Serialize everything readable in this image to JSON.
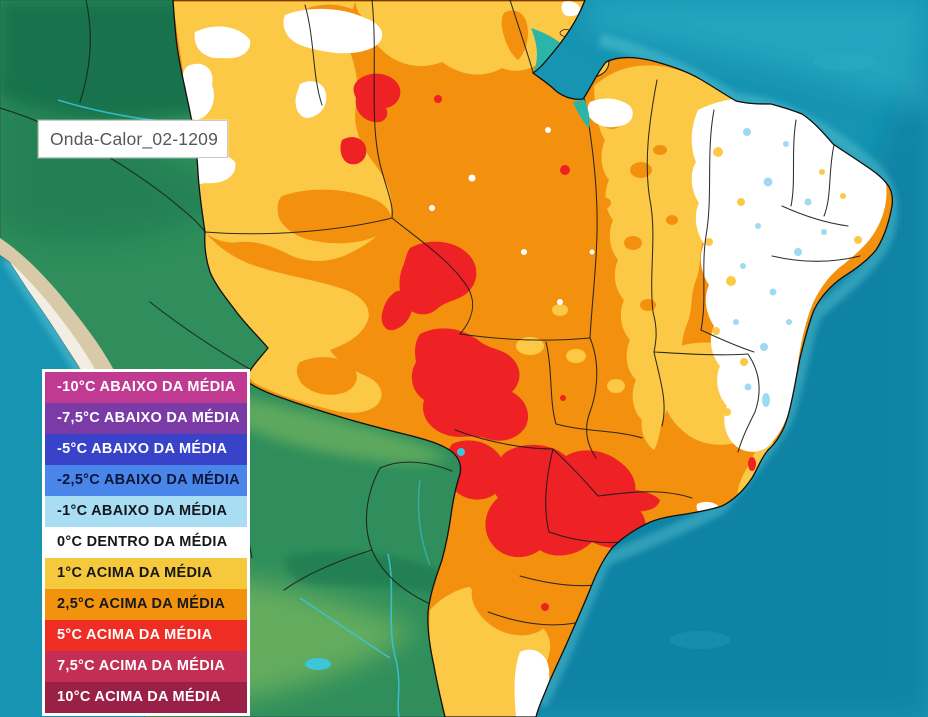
{
  "map_label": {
    "text": "Onda-Calor_02-1209"
  },
  "legend": {
    "items": [
      {
        "label": "-10°C ABAIXO DA MÉDIA",
        "bg": "#C03A92",
        "text_color": "#FFFFFF"
      },
      {
        "label": "-7,5°C ABAIXO DA MÉDIA",
        "bg": "#7B3BA7",
        "text_color": "#FFFFFF"
      },
      {
        "label": "-5°C ABAIXO DA MÉDIA",
        "bg": "#3943C9",
        "text_color": "#FFFFFF"
      },
      {
        "label": "-2,5°C ABAIXO DA MÉDIA",
        "bg": "#4A86EA",
        "text_color": "#0E1638"
      },
      {
        "label": "-1°C ABAIXO DA MÉDIA",
        "bg": "#A9DDF3",
        "text_color": "#14181C"
      },
      {
        "label": "0°C DENTRO DA MÉDIA",
        "bg": "#FFFFFF",
        "text_color": "#14181C"
      },
      {
        "label": "1°C ACIMA DA MÉDIA",
        "bg": "#F6C83B",
        "text_color": "#14181C"
      },
      {
        "label": "2,5°C ACIMA DA MÉDIA",
        "bg": "#F2930E",
        "text_color": "#14181C"
      },
      {
        "label": "5°C ACIMA DA MÉDIA",
        "bg": "#EE2D25",
        "text_color": "#FFFFFF"
      },
      {
        "label": "7,5°C ACIMA DA MÉDIA",
        "bg": "#C32E55",
        "text_color": "#FFFFFF"
      },
      {
        "label": "10°C ACIMA DA MÉDIA",
        "bg": "#9B2047",
        "text_color": "#FFFFFF"
      }
    ]
  },
  "map_colors": {
    "ocean_deep": "#0C7EA0",
    "ocean_mid": "#1694B2",
    "ocean_light": "#2EB0C6",
    "coast_glow": "#6FD4E0",
    "estuary": "#2BB5A8",
    "land_dark": "#15714B",
    "land_mid": "#2F8E5B",
    "land_light": "#7CBA60",
    "andes_tan": "#D8C9A8",
    "andes_snow": "#F3F0E7",
    "anomaly_plus_1": "#FBC945",
    "anomaly_plus_2_5": "#F3910E",
    "anomaly_plus_5": "#EE2125",
    "anomaly_within": "#FFFFFF",
    "anomaly_minus_1": "#9FD9F2",
    "state_border": "#1A1A1A",
    "river": "#3BC6DC"
  }
}
